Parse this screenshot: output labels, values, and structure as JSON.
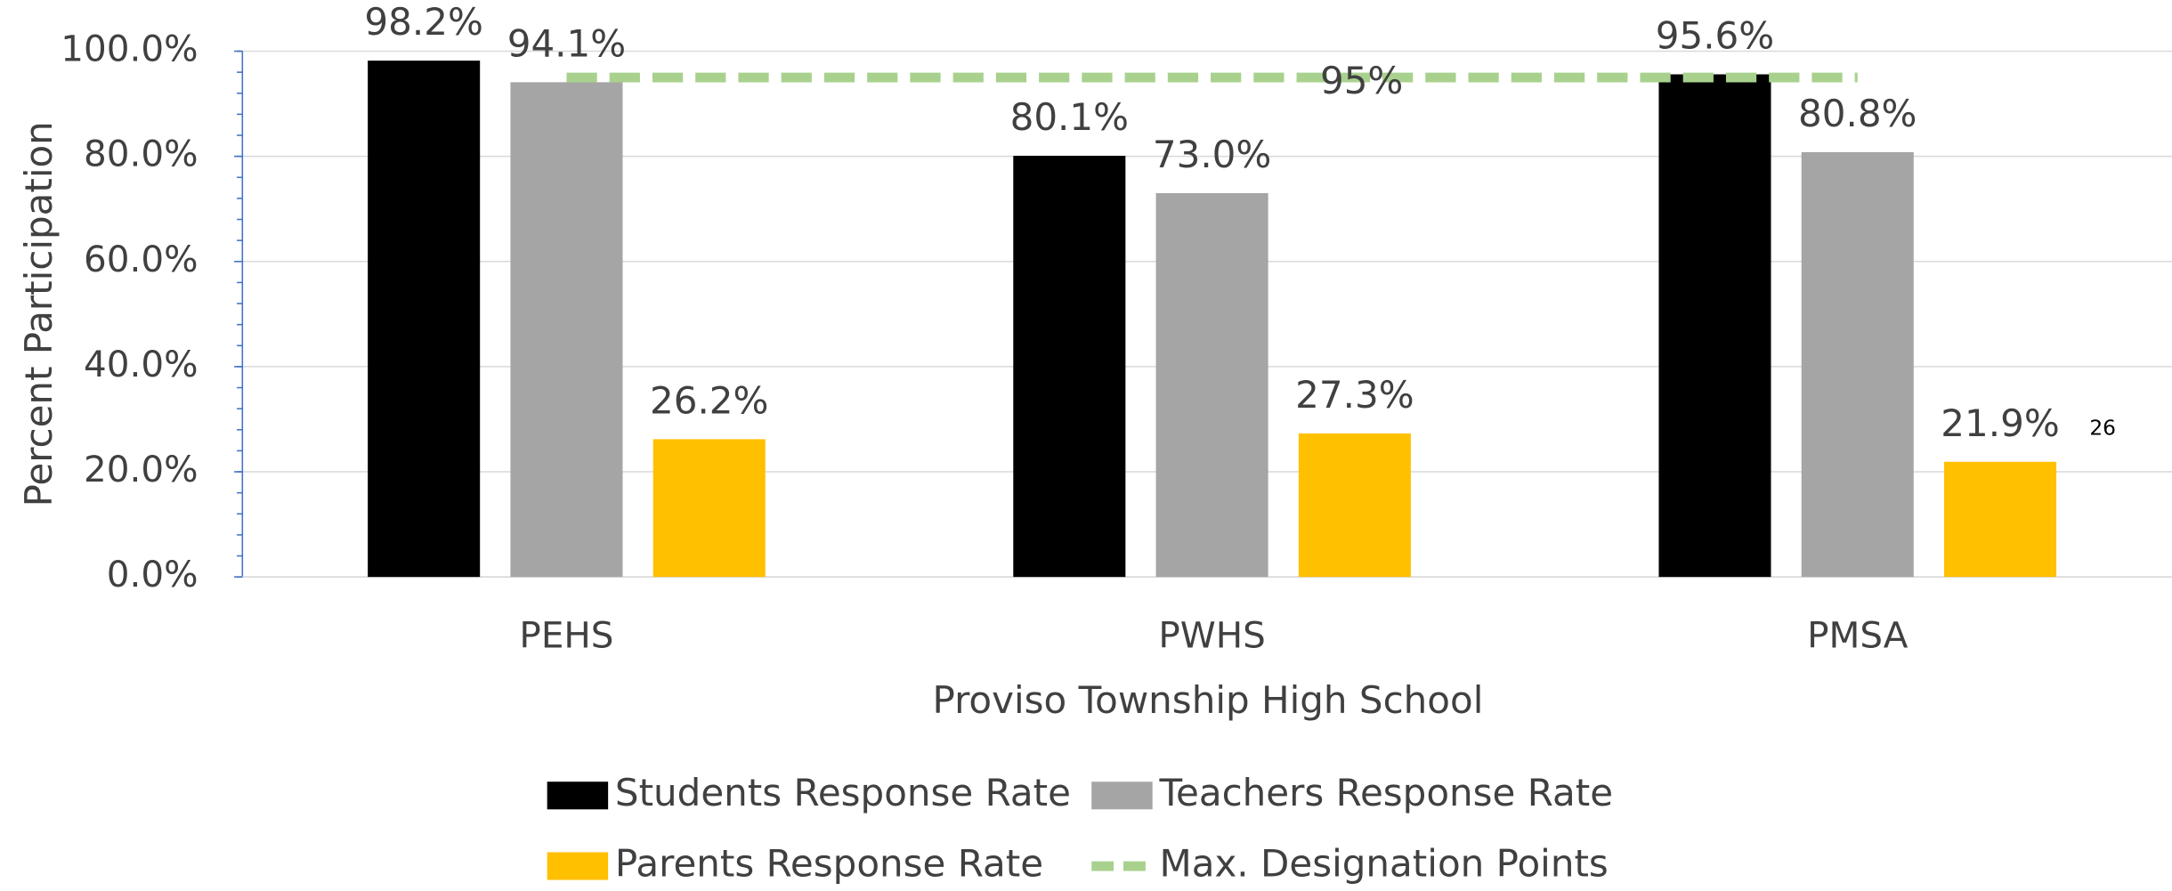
{
  "chart_data": {
    "type": "bar",
    "categories": [
      "PEHS",
      "PWHS",
      "PMSA"
    ],
    "series": [
      {
        "name": "Students Response Rate",
        "color": "#000000",
        "values": [
          98.2,
          80.1,
          95.6
        ],
        "value_labels": [
          "98.2%",
          "80.1%",
          "95.6%"
        ]
      },
      {
        "name": "Teachers Response Rate",
        "color": "#a5a5a5",
        "values": [
          94.1,
          73.0,
          80.8
        ],
        "value_labels": [
          "94.1%",
          "73.0%",
          "80.8%"
        ]
      },
      {
        "name": "Parents Response Rate",
        "color": "#ffc000",
        "values": [
          26.2,
          27.3,
          21.9
        ],
        "value_labels": [
          "26.2%",
          "27.3%",
          "21.9%"
        ]
      },
      {
        "name": "Max. Designation Points",
        "type": "line",
        "dashed": true,
        "color": "#a9d18e",
        "values": [
          95,
          95,
          95
        ],
        "value_labels": [
          null,
          "95%",
          null
        ]
      }
    ],
    "ylim": [
      0,
      100
    ],
    "yticks": [
      {
        "value": 0,
        "label": "0.0%"
      },
      {
        "value": 20,
        "label": "20.0%"
      },
      {
        "value": 40,
        "label": "40.0%"
      },
      {
        "value": 60,
        "label": "60.0%"
      },
      {
        "value": 80,
        "label": "80.0%"
      },
      {
        "value": 100,
        "label": "100.0%"
      }
    ],
    "ylabel": "Percent Participation",
    "xlabel": "Proviso Township High School",
    "grid": true,
    "legend": "bottom"
  },
  "page_number": "26"
}
